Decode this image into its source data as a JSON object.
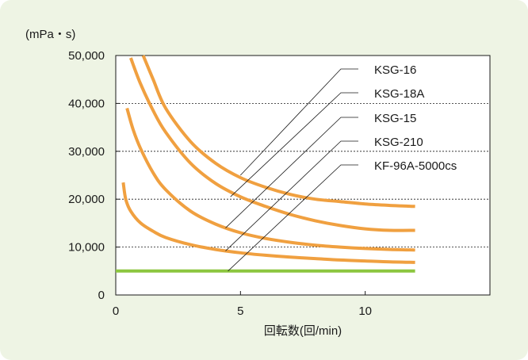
{
  "colors": {
    "panel_bg": "#eef4e4",
    "plot_bg": "#ffffff",
    "curve": "#f0a040",
    "baseline": "#8cc63f",
    "axis": "#1a1a1a",
    "grid": "#1a1a1a"
  },
  "chart_data": {
    "type": "line",
    "unit_label": "(mPa・s)",
    "xlabel": "回転数(回/min)",
    "xlim": [
      0,
      15
    ],
    "ylim": [
      0,
      50000
    ],
    "xticks": [
      0,
      5,
      10
    ],
    "xtick_labels": [
      "0",
      "5",
      "10"
    ],
    "yticks": [
      0,
      10000,
      20000,
      30000,
      40000,
      50000
    ],
    "ytick_labels": [
      "0",
      "10,000",
      "20,000",
      "30,000",
      "40,000",
      "50,000"
    ],
    "grid": "horizontal-dashed",
    "series": [
      {
        "name": "KSG-16",
        "x": [
          1.1,
          1.5,
          2,
          3,
          4,
          5,
          6,
          7,
          8,
          9,
          10,
          11,
          12
        ],
        "y": [
          50000,
          45000,
          39000,
          32000,
          27500,
          24500,
          22500,
          21000,
          20000,
          19500,
          19000,
          18700,
          18500
        ]
      },
      {
        "name": "KSG-18A",
        "x": [
          0.6,
          1,
          1.5,
          2,
          3,
          4,
          5,
          6,
          7,
          8,
          9,
          10,
          11,
          12
        ],
        "y": [
          49500,
          44000,
          38500,
          34000,
          27500,
          23300,
          20500,
          18500,
          16800,
          15500,
          14500,
          13800,
          13500,
          13500
        ]
      },
      {
        "name": "KSG-15",
        "x": [
          0.45,
          0.7,
          1,
          1.5,
          2,
          3,
          4,
          5,
          6,
          7,
          8,
          9,
          10,
          11,
          12
        ],
        "y": [
          39000,
          34500,
          30500,
          25500,
          22000,
          17500,
          14800,
          13000,
          11800,
          11000,
          10400,
          10000,
          9700,
          9500,
          9400
        ]
      },
      {
        "name": "KSG-210",
        "x": [
          0.3,
          0.4,
          0.6,
          1,
          1.5,
          2,
          3,
          4,
          5,
          6,
          7,
          8,
          9,
          10,
          11,
          12
        ],
        "y": [
          23500,
          20000,
          17500,
          15000,
          13300,
          12000,
          10500,
          9500,
          8800,
          8300,
          7900,
          7600,
          7300,
          7100,
          6900,
          6800
        ]
      },
      {
        "name": "KF-96A-5000cs",
        "x": [
          0,
          12
        ],
        "y": [
          5000,
          5000
        ]
      }
    ],
    "label_order": [
      "KSG-16",
      "KSG-18A",
      "KSG-15",
      "KSG-210",
      "KF-96A-5000cs"
    ]
  }
}
